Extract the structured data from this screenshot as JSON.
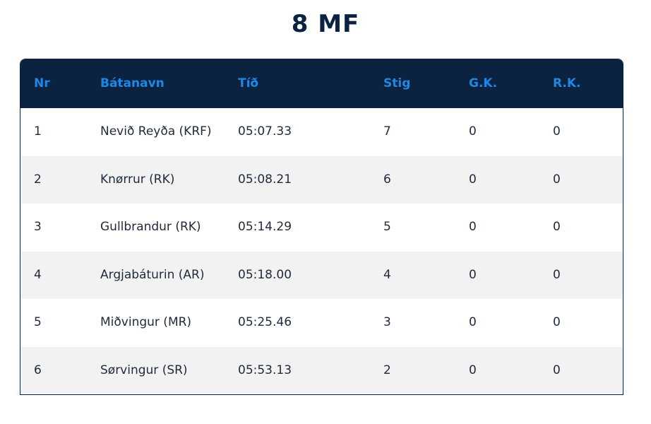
{
  "page": {
    "title": "8 MF"
  },
  "table": {
    "headers": {
      "nr": "Nr",
      "boat": "Bátanavn",
      "time": "Tíð",
      "points": "Stig",
      "gk": "G.K.",
      "rk": "R.K."
    },
    "rows": [
      {
        "nr": "1",
        "boat": "Nevið Reyða (KRF)",
        "time": "05:07.33",
        "points": "7",
        "gk": "0",
        "rk": "0"
      },
      {
        "nr": "2",
        "boat": "Knørrur (RK)",
        "time": "05:08.21",
        "points": "6",
        "gk": "0",
        "rk": "0"
      },
      {
        "nr": "3",
        "boat": "Gullbrandur (RK)",
        "time": "05:14.29",
        "points": "5",
        "gk": "0",
        "rk": "0"
      },
      {
        "nr": "4",
        "boat": "Argjabáturin (AR)",
        "time": "05:18.00",
        "points": "4",
        "gk": "0",
        "rk": "0"
      },
      {
        "nr": "5",
        "boat": "Miðvingur (MR)",
        "time": "05:25.46",
        "points": "3",
        "gk": "0",
        "rk": "0"
      },
      {
        "nr": "6",
        "boat": "Sørvingur (SR)",
        "time": "05:53.13",
        "points": "2",
        "gk": "0",
        "rk": "0"
      }
    ]
  },
  "colors": {
    "header_bg": "#0b2340",
    "header_text": "#1e88e5",
    "row_alt_bg": "#f2f2f2",
    "title_text": "#0b2340"
  }
}
